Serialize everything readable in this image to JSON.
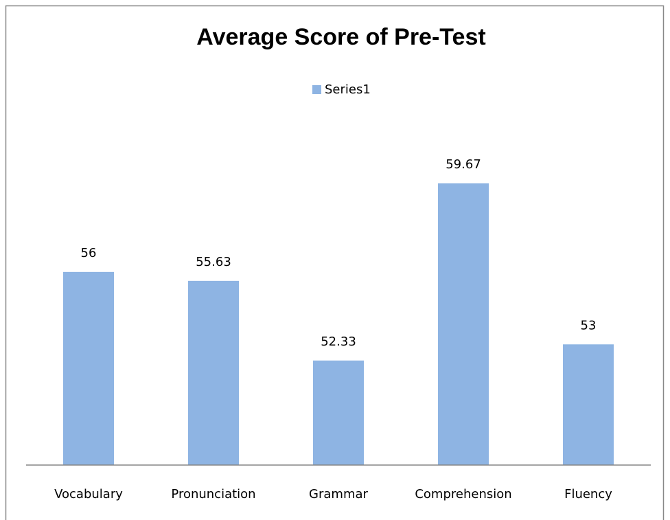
{
  "chart_data": {
    "type": "bar",
    "title": "Average Score of Pre-Test",
    "categories": [
      "Vocabulary",
      "Pronunciation",
      "Grammar",
      "Comprehension",
      "Fluency"
    ],
    "series": [
      {
        "name": "Series1",
        "color": "#8eb4e3",
        "values": [
          56,
          55.63,
          52.33,
          59.67,
          53
        ]
      }
    ],
    "ylim": [
      48,
      62
    ],
    "legend": "top",
    "grid": false
  }
}
